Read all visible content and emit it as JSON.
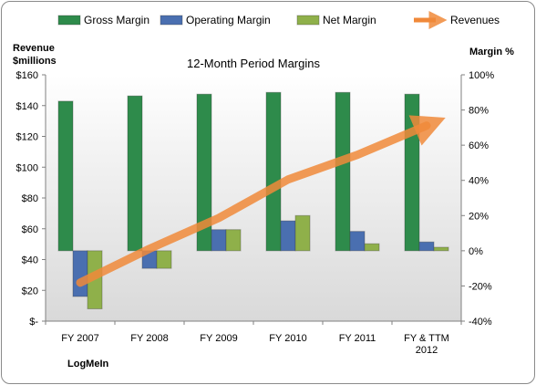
{
  "chart_data": {
    "type": "bar",
    "title": "12-Month Period Margins",
    "categories": [
      "FY 2007",
      "FY 2008",
      "FY 2009",
      "FY 2010",
      "FY 2011",
      "FY & TTM 2012"
    ],
    "y_left": {
      "label_lines": [
        "Revenue",
        "$millions"
      ],
      "ylim": [
        0,
        160
      ],
      "ticks": [
        0,
        20,
        40,
        60,
        80,
        100,
        120,
        140,
        160
      ],
      "tick_labels": [
        "$-",
        "$20",
        "$40",
        "$60",
        "$80",
        "$100",
        "$120",
        "$140",
        "$160"
      ]
    },
    "y_right": {
      "label": "Margin %",
      "ylim": [
        -40,
        100
      ],
      "ticks": [
        -40,
        -20,
        0,
        20,
        40,
        60,
        80,
        100
      ],
      "tick_labels": [
        "-40%",
        "-20%",
        "0%",
        "20%",
        "40%",
        "60%",
        "80%",
        "100%"
      ]
    },
    "series": [
      {
        "name": "Gross Margin",
        "kind": "bar",
        "axis": "right",
        "color": "#2e8b4b",
        "values": [
          85,
          88,
          89,
          90,
          90,
          89
        ]
      },
      {
        "name": "Operating Margin",
        "kind": "bar",
        "axis": "right",
        "color": "#4a6fb0",
        "values": [
          -26,
          -10,
          12,
          17,
          11,
          5
        ]
      },
      {
        "name": "Net Margin",
        "kind": "bar",
        "axis": "right",
        "color": "#8fb04a",
        "values": [
          -33,
          -10,
          12,
          20,
          4,
          2
        ]
      },
      {
        "name": "Revenues",
        "kind": "line",
        "axis": "left",
        "color": "#f0893a",
        "values": [
          25,
          47,
          67,
          92,
          108,
          127
        ]
      }
    ],
    "legend": "top",
    "grid": false,
    "plot_background": [
      "#ffffff",
      "#d9d9d9"
    ]
  },
  "footer": {
    "company": "LogMeIn"
  }
}
